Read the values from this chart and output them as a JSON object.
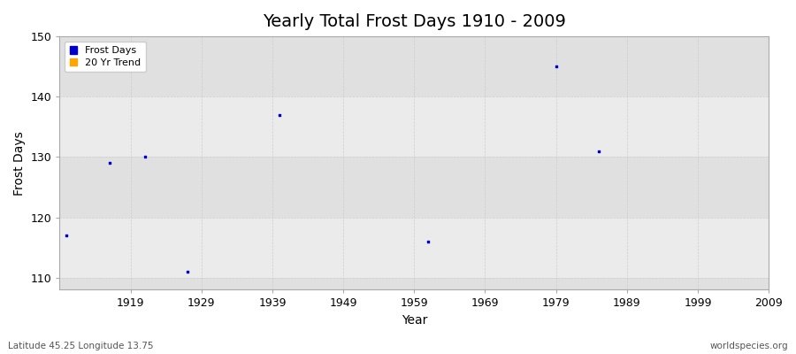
{
  "title": "Yearly Total Frost Days 1910 - 2009",
  "xlabel": "Year",
  "ylabel": "Frost Days",
  "subtitle_left": "Latitude 45.25 Longitude 13.75",
  "subtitle_right": "worldspecies.org",
  "xlim": [
    1909,
    2009
  ],
  "ylim": [
    108,
    150
  ],
  "yticks": [
    110,
    120,
    130,
    140,
    150
  ],
  "xticks": [
    1919,
    1929,
    1939,
    1949,
    1959,
    1969,
    1979,
    1989,
    1999,
    2009
  ],
  "fig_bg_color": "#ffffff",
  "plot_bg_color": "#ebebeb",
  "band_color_light": "#ebebeb",
  "band_color_dark": "#e0e0e0",
  "data_points": [
    {
      "year": 1910,
      "value": 117
    },
    {
      "year": 1916,
      "value": 129
    },
    {
      "year": 1921,
      "value": 130
    },
    {
      "year": 1927,
      "value": 111
    },
    {
      "year": 1940,
      "value": 137
    },
    {
      "year": 1961,
      "value": 116
    },
    {
      "year": 1979,
      "value": 145
    },
    {
      "year": 1985,
      "value": 131
    }
  ],
  "point_color": "#0000cc",
  "point_size": 4,
  "legend_frost_color": "#0000cc",
  "legend_trend_color": "#ffa500",
  "grid_color": "#cccccc",
  "title_fontsize": 14,
  "axis_fontsize": 10,
  "tick_fontsize": 9
}
